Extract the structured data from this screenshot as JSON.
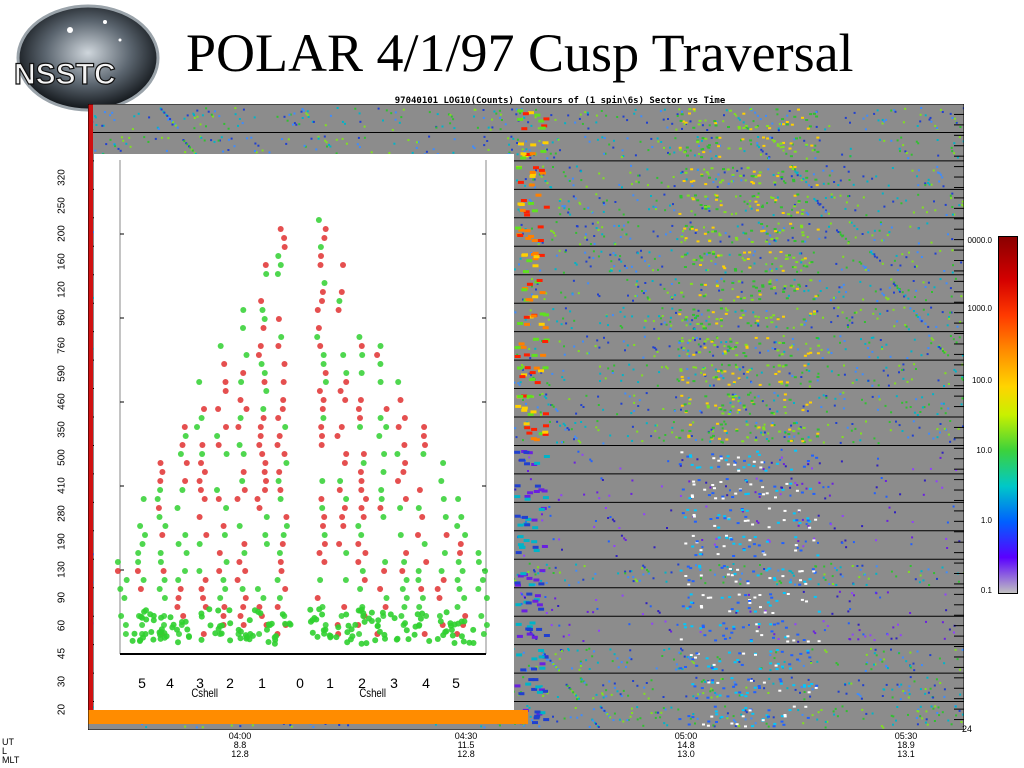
{
  "slide": {
    "title": "POLAR 4/1/97 Cusp Traversal",
    "logo_text": "NSSTC"
  },
  "chart_data": [
    {
      "type": "heatmap",
      "title": "97040101 LOG10(Counts) Contours of (1 spin\\6s) Sector vs Time",
      "x_ticks": [
        {
          "UT": "04:00",
          "L": "8.8",
          "MLT": "12.8"
        },
        {
          "UT": "04:30",
          "L": "11.5",
          "MLT": "12.8"
        },
        {
          "UT": "05:00",
          "L": "14.8",
          "MLT": "13.0"
        },
        {
          "UT": "05:30",
          "L": "18.9",
          "MLT": "13.1"
        }
      ],
      "x_row_labels": [
        "UT",
        "L",
        "MLT"
      ],
      "y_labels": [
        "20",
        "30",
        "45",
        "60",
        "90",
        "130",
        "190",
        "280",
        "410",
        "500",
        "350",
        "460",
        "590",
        "760",
        "960",
        "120",
        "160",
        "200",
        "250",
        "320"
      ],
      "colorbar": {
        "labels": [
          "0000.0",
          "1000.0",
          "100.0",
          "10.0",
          "1.0",
          "0.1"
        ],
        "scale": "log"
      },
      "right_axis_label": "24"
    },
    {
      "type": "scatter",
      "x_label": "Cshell",
      "left_label": "Cshell",
      "x_ticks": [
        "5",
        "4",
        "3",
        "2",
        "1",
        "0",
        "1",
        "2",
        "3",
        "4",
        "5"
      ],
      "series": [
        {
          "color": "#e03030"
        },
        {
          "color": "#30d030"
        }
      ]
    }
  ]
}
